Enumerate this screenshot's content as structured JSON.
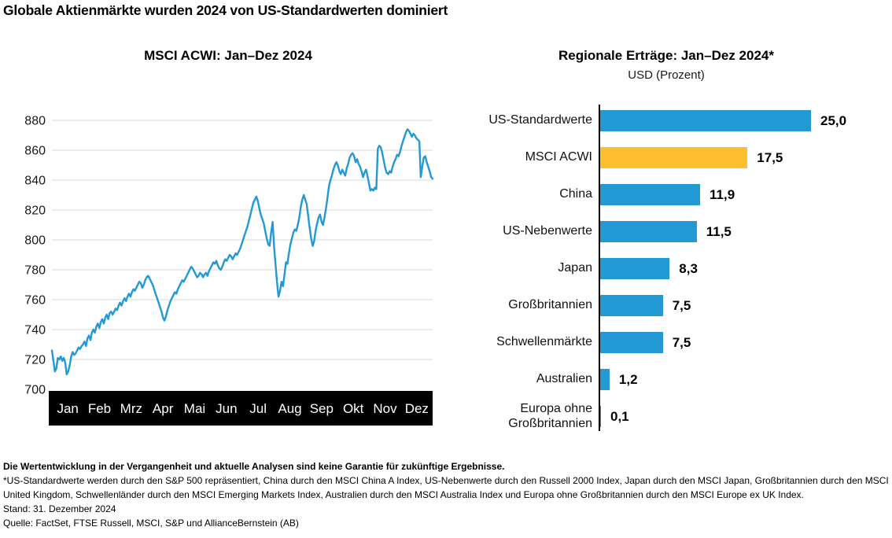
{
  "page": {
    "title": "Globale Aktienmärkte wurden 2024 von US-Standardwerten dominiert",
    "footer": {
      "disclaimer": "Die Wertentwicklung in der Vergangenheit und aktuelle Analysen sind keine Garantie für zukünftige Ergebnisse.",
      "footnote": "*US-Standardwerte werden durch den S&P 500 repräsentiert, China durch den MSCI China A Index, US-Nebenwerte durch den Russell 2000 Index, Japan durch den MSCI Japan, Großbritannien durch den MSCI United Kingdom, Schwellenländer durch den MSCI Emerging Markets Index, Australien durch den MSCI Australia Index und Europa ohne Großbritannien durch den MSCI Europe ex UK Index.",
      "as_of": "Stand: 31. Dezember 2024",
      "source": "Quelle: FactSet, FTSE Russell, MSCI, S&P und AllianceBernstein (AB)"
    }
  },
  "colors": {
    "line_blue": "#2299d5",
    "bar_blue": "#2299d5",
    "highlight_yellow": "#fdbf2d",
    "grid": "#d8d8d8",
    "axis_band": "#000000",
    "tick_text": "#191919",
    "band_text": "#ffffff"
  },
  "chart_data": [
    {
      "type": "line",
      "title": "MSCI ACWI: Jan–Dez 2024",
      "series_name": "MSCI ACWI",
      "x_categories": [
        "Jan",
        "Feb",
        "Mrz",
        "Apr",
        "Mai",
        "Jun",
        "Jul",
        "Aug",
        "Sep",
        "Okt",
        "Nov",
        "Dez"
      ],
      "ylim": [
        700,
        880
      ],
      "y_ticks": [
        880,
        860,
        840,
        820,
        800,
        780,
        760,
        740,
        720,
        700
      ],
      "grid": true,
      "values": [
        726,
        719,
        712,
        714,
        721,
        720,
        722,
        719,
        721,
        718,
        710,
        712,
        716,
        722,
        725,
        723,
        724,
        726,
        728,
        727,
        729,
        730,
        732,
        729,
        734,
        736,
        733,
        738,
        740,
        738,
        742,
        744,
        741,
        745,
        747,
        744,
        748,
        750,
        747,
        751,
        752,
        750,
        752,
        754,
        753,
        756,
        758,
        756,
        759,
        761,
        759,
        762,
        764,
        762,
        765,
        767,
        766,
        768,
        770,
        772,
        771,
        768,
        770,
        773,
        775,
        776,
        774,
        772,
        770,
        767,
        764,
        761,
        758,
        755,
        752,
        748,
        746,
        749,
        753,
        756,
        759,
        761,
        763,
        765,
        764,
        767,
        769,
        771,
        773,
        772,
        774,
        776,
        778,
        780,
        782,
        781,
        779,
        777,
        775,
        776,
        778,
        777,
        775,
        777,
        778,
        776,
        779,
        781,
        783,
        785,
        784,
        786,
        783,
        781,
        780,
        782,
        785,
        787,
        786,
        788,
        790,
        789,
        787,
        789,
        791,
        790,
        792,
        794,
        797,
        800,
        803,
        806,
        809,
        813,
        817,
        821,
        825,
        827,
        829,
        826,
        821,
        817,
        814,
        811,
        806,
        801,
        797,
        796,
        805,
        812,
        795,
        783,
        771,
        762,
        766,
        772,
        769,
        777,
        785,
        784,
        791,
        797,
        801,
        805,
        807,
        806,
        810,
        815,
        822,
        827,
        830,
        827,
        824,
        816,
        808,
        801,
        796,
        799,
        806,
        811,
        815,
        817,
        812,
        810,
        815,
        821,
        828,
        836,
        840,
        843,
        847,
        850,
        852,
        850,
        846,
        844,
        847,
        845,
        843,
        848,
        851,
        855,
        857,
        858,
        856,
        852,
        854,
        851,
        849,
        846,
        842,
        845,
        847,
        843,
        838,
        833,
        834,
        833,
        835,
        834,
        861,
        863,
        862,
        858,
        853,
        848,
        845,
        844,
        846,
        845,
        849,
        852,
        854,
        857,
        856,
        859,
        863,
        866,
        869,
        872,
        874,
        873,
        871,
        869,
        871,
        870,
        868,
        867,
        866,
        842,
        849,
        855,
        856,
        852,
        849,
        846,
        842,
        841
      ]
    },
    {
      "type": "bar",
      "orientation": "horizontal",
      "title": "Regionale Erträge: Jan–Dez 2024*",
      "subtitle": "USD (Prozent)",
      "xlim": [
        0,
        27
      ],
      "categories": [
        "US-Standardwerte",
        "MSCI ACWI",
        "China",
        "US-Nebenwerte",
        "Japan",
        "Großbritannien",
        "Schwellenmärkte",
        "Australien",
        "Europa ohne Großbritannien"
      ],
      "values": [
        25.0,
        17.5,
        11.9,
        11.5,
        8.3,
        7.5,
        7.5,
        1.2,
        0.1
      ],
      "value_labels": [
        "25,0",
        "17,5",
        "11,9",
        "11,5",
        "8,3",
        "7,5",
        "7,5",
        "1,2",
        "0,1"
      ],
      "bar_colors": [
        "#2299d5",
        "#fdbf2d",
        "#2299d5",
        "#2299d5",
        "#2299d5",
        "#2299d5",
        "#2299d5",
        "#2299d5",
        "#2299d5"
      ]
    }
  ]
}
